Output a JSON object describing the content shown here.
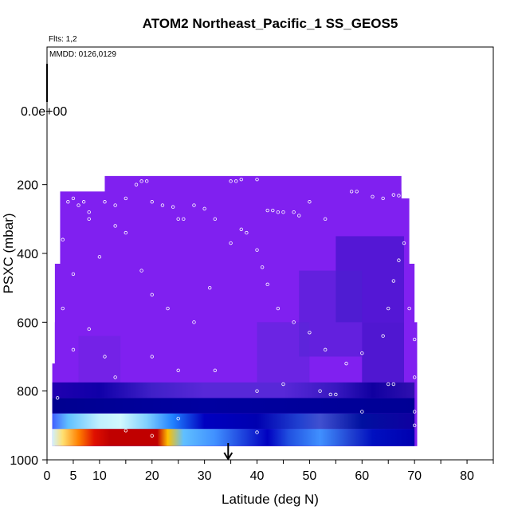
{
  "chart_data": {
    "type": "heatmap",
    "title": "ATOM2 Northeast_Pacific_1 SS_GEOS5",
    "flights_label": "Flts: 1,2",
    "mmdd_label": "MMDD: 0126,0129",
    "xlabel": "Latitude (deg N)",
    "ylabel": "PSXC (mbar)",
    "xlim": [
      0,
      85
    ],
    "ylim": [
      1000,
      -200
    ],
    "x_ticks": [
      0,
      5,
      10,
      20,
      30,
      40,
      50,
      60,
      70,
      80
    ],
    "y_ticks": [
      200,
      400,
      600,
      800,
      1000
    ],
    "colorbar_min_label": "0.0e+00",
    "arrow_latitude": 34.5,
    "background_value_color": "#8020f0",
    "region": [
      {
        "p_top": 220,
        "lat_from": 2.5,
        "lat_to": 67.5
      },
      {
        "p_top": 175,
        "lat_from": 11,
        "lat_to": 67.5
      },
      {
        "p_top": 240,
        "lat_from": 2.5,
        "lat_to": 69
      },
      {
        "p_top": 430,
        "lat_from": 1.5,
        "lat_to": 70
      },
      {
        "p_top": 600,
        "lat_from": 1.5,
        "lat_to": 70.5
      },
      {
        "p_top": 720,
        "lat_from": 1,
        "lat_to": 70.5
      },
      {
        "p_top": 960,
        "lat_from": 1,
        "lat_to": 70
      }
    ],
    "layers": [
      {
        "p_from": 960,
        "p_to": 910,
        "stops": [
          [
            1,
            "#d0f0ff"
          ],
          [
            3,
            "#ffe070"
          ],
          [
            6,
            "#ff8000"
          ],
          [
            9,
            "#e01000"
          ],
          [
            12,
            "#c00000"
          ],
          [
            21,
            "#c00000"
          ],
          [
            23,
            "#ffc000"
          ],
          [
            26,
            "#60c0ff"
          ],
          [
            32,
            "#4090ff"
          ],
          [
            42,
            "#0000c0"
          ],
          [
            46,
            "#2050e0"
          ],
          [
            52,
            "#4090ff"
          ],
          [
            58,
            "#2040d0"
          ],
          [
            62,
            "#0010c0"
          ],
          [
            70,
            "#0000b0"
          ]
        ]
      },
      {
        "p_from": 910,
        "p_to": 865,
        "stops": [
          [
            1,
            "#4060ff"
          ],
          [
            4,
            "#60c0ff"
          ],
          [
            10,
            "#c0f0ff"
          ],
          [
            14,
            "#d0f8ff"
          ],
          [
            19,
            "#80d0ff"
          ],
          [
            24,
            "#2080ff"
          ],
          [
            30,
            "#0000c0"
          ],
          [
            40,
            "#0000b0"
          ],
          [
            48,
            "#2040d0"
          ],
          [
            52,
            "#4050d0"
          ],
          [
            60,
            "#0010a0"
          ],
          [
            70,
            "#1000a0"
          ]
        ]
      },
      {
        "p_from": 865,
        "p_to": 820,
        "stops": [
          [
            1,
            "#000090"
          ],
          [
            30,
            "#0000a0"
          ],
          [
            50,
            "#00009a"
          ],
          [
            70,
            "#000095"
          ]
        ]
      },
      {
        "p_from": 820,
        "p_to": 775,
        "stops": [
          [
            1,
            "#2000b0"
          ],
          [
            10,
            "#1000a8"
          ],
          [
            20,
            "#4020c8"
          ],
          [
            30,
            "#5828d8"
          ],
          [
            45,
            "#5828d8"
          ],
          [
            55,
            "#3818c0"
          ],
          [
            62,
            "#1000a0"
          ],
          [
            70,
            "#3010b0"
          ]
        ]
      }
    ],
    "patches": [
      {
        "lat_from": 55,
        "lat_to": 68,
        "p_from": 350,
        "p_to": 600,
        "color": "#3010c0"
      },
      {
        "lat_from": 48,
        "lat_to": 60,
        "p_from": 450,
        "p_to": 700,
        "color": "#4a20d0"
      },
      {
        "lat_from": 60,
        "lat_to": 68,
        "p_from": 600,
        "p_to": 775,
        "color": "#2810b8"
      },
      {
        "lat_from": 40,
        "lat_to": 50,
        "p_from": 600,
        "p_to": 775,
        "color": "#5a28d8"
      },
      {
        "lat_from": 6,
        "lat_to": 14,
        "p_from": 640,
        "p_to": 775,
        "color": "#6a24e0"
      }
    ],
    "observation_points": [
      [
        3,
        205
      ],
      [
        4,
        250
      ],
      [
        5,
        240
      ],
      [
        6,
        260
      ],
      [
        7,
        250
      ],
      [
        8,
        280
      ],
      [
        11,
        250
      ],
      [
        13,
        260
      ],
      [
        15,
        240
      ],
      [
        17,
        200
      ],
      [
        18,
        190
      ],
      [
        19,
        190
      ],
      [
        20,
        250
      ],
      [
        22,
        260
      ],
      [
        24,
        265
      ],
      [
        25,
        300
      ],
      [
        26,
        300
      ],
      [
        28,
        260
      ],
      [
        30,
        270
      ],
      [
        32,
        300
      ],
      [
        35,
        190
      ],
      [
        36,
        190
      ],
      [
        37,
        185
      ],
      [
        40,
        185
      ],
      [
        42,
        275
      ],
      [
        43,
        275
      ],
      [
        44,
        280
      ],
      [
        45,
        280
      ],
      [
        47,
        280
      ],
      [
        48,
        290
      ],
      [
        50,
        250
      ],
      [
        53,
        300
      ],
      [
        58,
        220
      ],
      [
        59,
        220
      ],
      [
        62,
        235
      ],
      [
        64,
        240
      ],
      [
        66,
        230
      ],
      [
        67,
        232
      ],
      [
        3,
        360
      ],
      [
        5,
        460
      ],
      [
        8,
        300
      ],
      [
        10,
        410
      ],
      [
        13,
        320
      ],
      [
        15,
        340
      ],
      [
        18,
        450
      ],
      [
        20,
        520
      ],
      [
        23,
        560
      ],
      [
        28,
        600
      ],
      [
        31,
        500
      ],
      [
        35,
        370
      ],
      [
        37,
        330
      ],
      [
        38,
        340
      ],
      [
        40,
        390
      ],
      [
        41,
        440
      ],
      [
        42,
        490
      ],
      [
        44,
        560
      ],
      [
        47,
        600
      ],
      [
        50,
        630
      ],
      [
        53,
        680
      ],
      [
        57,
        720
      ],
      [
        60,
        690
      ],
      [
        64,
        640
      ],
      [
        65,
        560
      ],
      [
        66,
        480
      ],
      [
        67,
        420
      ],
      [
        68,
        370
      ],
      [
        69,
        560
      ],
      [
        70,
        650
      ],
      [
        70,
        760
      ],
      [
        70,
        860
      ],
      [
        70,
        900
      ],
      [
        3,
        560
      ],
      [
        5,
        680
      ],
      [
        8,
        620
      ],
      [
        11,
        700
      ],
      [
        13,
        760
      ],
      [
        20,
        700
      ],
      [
        25,
        740
      ],
      [
        32,
        740
      ],
      [
        40,
        800
      ],
      [
        45,
        780
      ],
      [
        52,
        800
      ],
      [
        60,
        860
      ],
      [
        15,
        915
      ],
      [
        20,
        930
      ],
      [
        25,
        880
      ],
      [
        40,
        920
      ],
      [
        54,
        810
      ],
      [
        55,
        810
      ],
      [
        65,
        780
      ],
      [
        66,
        780
      ],
      [
        1,
        620
      ],
      [
        1,
        700
      ],
      [
        2,
        820
      ]
    ]
  }
}
